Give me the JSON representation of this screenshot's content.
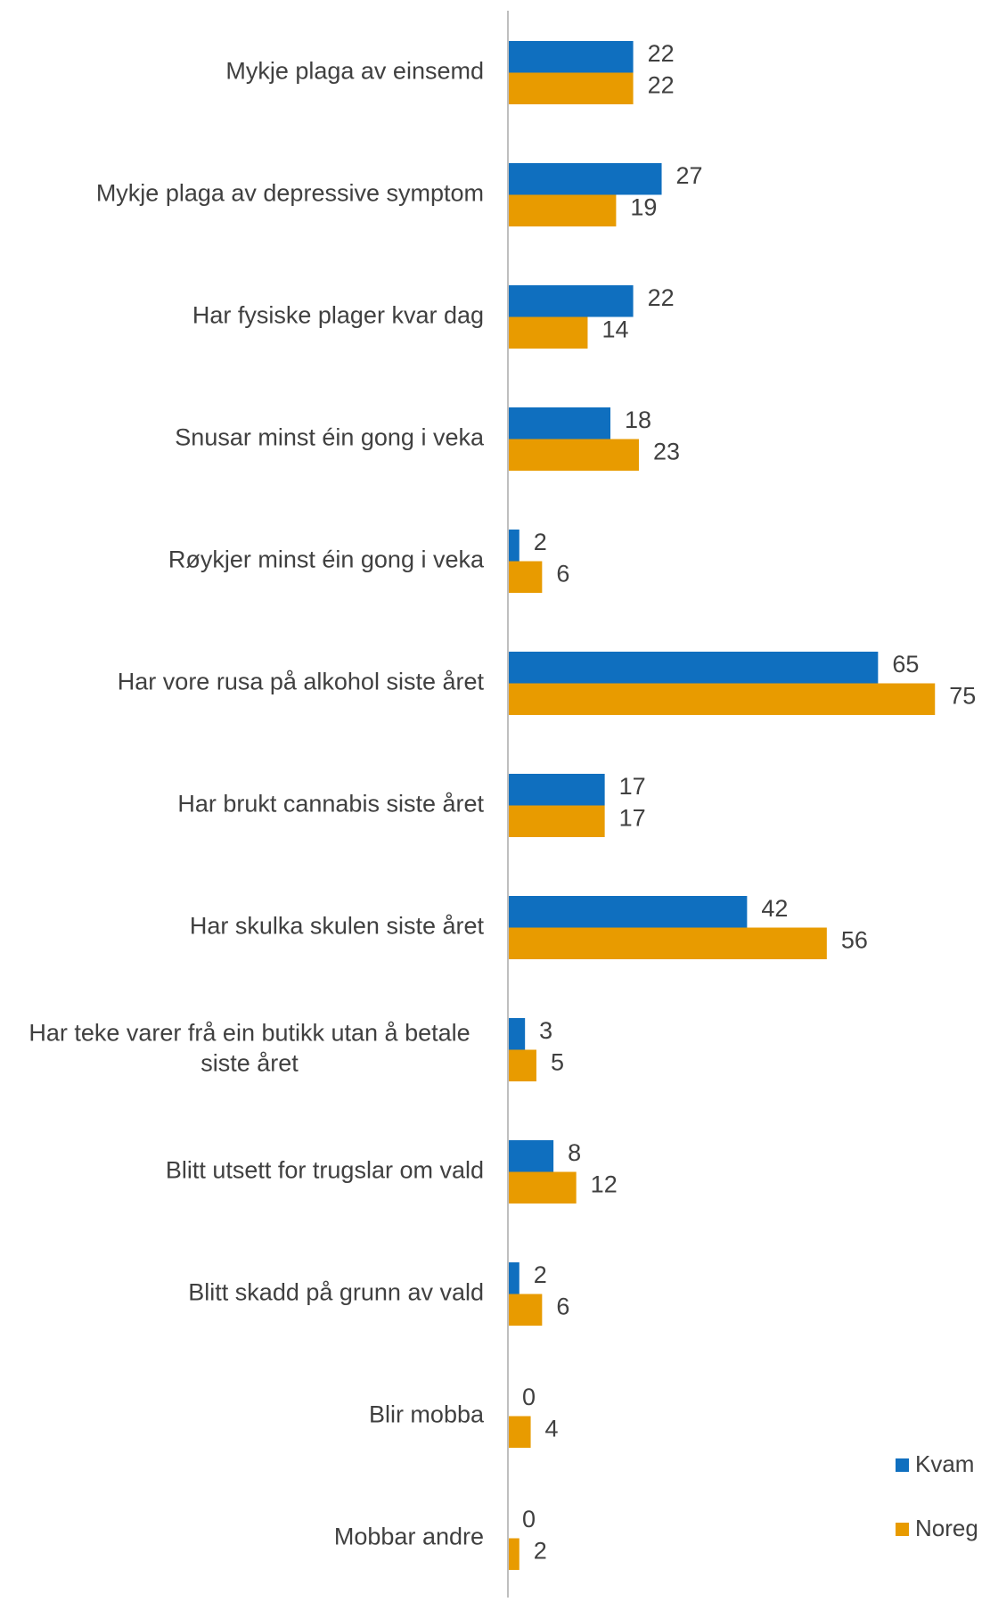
{
  "chart_data": {
    "type": "bar",
    "orientation": "horizontal",
    "categories": [
      [
        "Mykje plaga av einsemd"
      ],
      [
        "Mykje plaga av depressive symptom"
      ],
      [
        "Har fysiske plager kvar dag"
      ],
      [
        "Snusar minst éin gong i veka"
      ],
      [
        "Røykjer minst éin gong i veka"
      ],
      [
        "Har vore rusa på alkohol siste året"
      ],
      [
        "Har brukt cannabis siste året"
      ],
      [
        "Har skulka skulen siste året"
      ],
      [
        "Har teke varer frå ein butikk utan å betale",
        "siste året"
      ],
      [
        "Blitt utsett for trugslar om vald"
      ],
      [
        "Blitt skadd på grunn av vald"
      ],
      [
        "Blir mobba"
      ],
      [
        "Mobbar andre"
      ]
    ],
    "series": [
      {
        "name": "Kvam",
        "color": "#0f6fbf",
        "values": [
          22,
          27,
          22,
          18,
          2,
          65,
          17,
          42,
          3,
          8,
          2,
          0,
          0
        ]
      },
      {
        "name": "Noreg",
        "color": "#e89b00",
        "values": [
          22,
          19,
          14,
          23,
          6,
          75,
          17,
          56,
          5,
          12,
          6,
          4,
          2
        ]
      }
    ],
    "xlim": [
      0,
      75
    ],
    "grid": false,
    "data_labels": true,
    "legend_position": "bottom-right",
    "axis_color": "#bfbfbf",
    "title": "",
    "xlabel": "",
    "ylabel": ""
  }
}
